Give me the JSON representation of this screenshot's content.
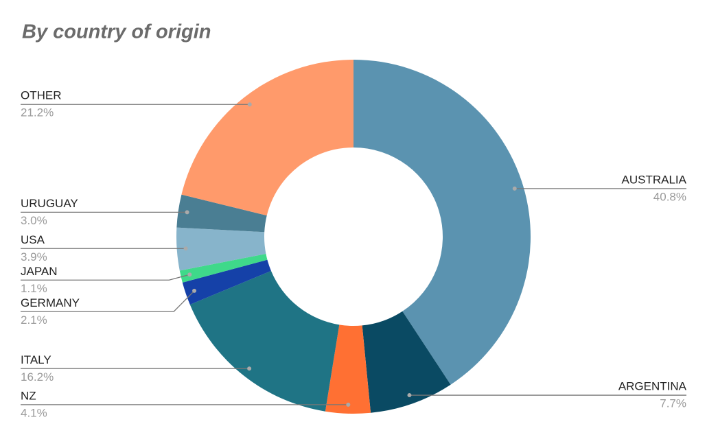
{
  "chart_data": {
    "type": "pie",
    "title": "By country of origin",
    "categories": [
      "AUSTRALIA",
      "ARGENTINA",
      "NZ",
      "ITALY",
      "GERMANY",
      "JAPAN",
      "USA",
      "URUGUAY",
      "OTHER"
    ],
    "values": [
      40.8,
      7.7,
      4.1,
      16.2,
      2.1,
      1.1,
      3.9,
      3.0,
      21.2
    ],
    "value_labels": [
      "40.8%",
      "7.7%",
      "4.1%",
      "16.2%",
      "2.1%",
      "1.1%",
      "3.9%",
      "3.0%",
      "21.2%"
    ],
    "colors": [
      "#5b93b0",
      "#0a4a63",
      "#ff7033",
      "#1f7485",
      "#1541a8",
      "#3fd98a",
      "#87b4cb",
      "#4a7e93",
      "#ff9a6b"
    ]
  }
}
